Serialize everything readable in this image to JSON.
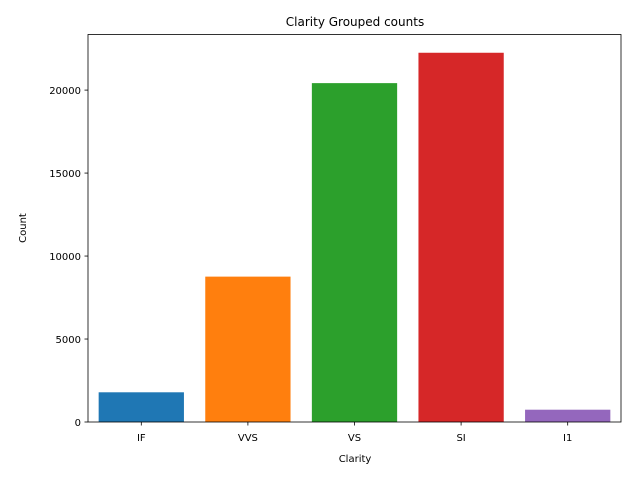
{
  "chart_data": {
    "type": "bar",
    "title": "Clarity Grouped counts",
    "xlabel": "Clarity",
    "ylabel": "Count",
    "categories": [
      "IF",
      "VVS",
      "VS",
      "SI",
      "I1"
    ],
    "values": [
      1790,
      8760,
      20420,
      22250,
      741
    ],
    "colors": [
      "#1f77b4",
      "#ff7f0e",
      "#2ca02c",
      "#d62728",
      "#9467bd"
    ],
    "ylim": [
      0,
      23350
    ],
    "yticks": [
      0,
      5000,
      10000,
      15000,
      20000
    ],
    "grid": false,
    "legend": "none"
  }
}
